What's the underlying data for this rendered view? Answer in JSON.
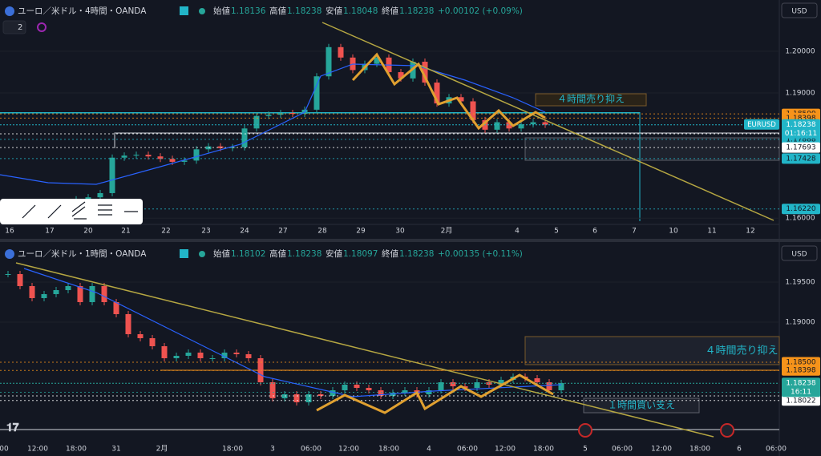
{
  "top_chart": {
    "type": "candlestick",
    "title": "ユーロ／米ドル・4時間・OANDA",
    "interval_badge": "2",
    "currency": "USD",
    "ohlc": {
      "open_label": "始値",
      "open": "1.18136",
      "high_label": "高値",
      "high": "1.18238",
      "low_label": "安値",
      "low": "1.18048",
      "close_label": "終値",
      "close": "1.18238",
      "change": "+0.00102 (+0.09%)"
    },
    "ylim": [
      1.1585,
      1.2123
    ],
    "yticks": [
      {
        "value": 1.16,
        "label": "1.16000"
      },
      {
        "value": 1.19,
        "label": "1.19000"
      },
      {
        "value": 1.2,
        "label": "1.20000"
      }
    ],
    "closes": [
      1.1622,
      1.1624,
      1.1625,
      1.162,
      1.1628,
      1.1632,
      1.1645,
      1.165,
      1.166,
      1.1745,
      1.175,
      1.1752,
      1.1748,
      1.1742,
      1.1735,
      1.1738,
      1.1765,
      1.1772,
      1.1768,
      1.177,
      1.1815,
      1.1845,
      1.1848,
      1.1852,
      1.185,
      1.186,
      1.194,
      1.201,
      1.1985,
      1.1955,
      1.197,
      1.1985,
      1.195,
      1.1935,
      1.1975,
      1.1925,
      1.1875,
      1.189,
      1.188,
      1.1835,
      1.1812,
      1.183,
      1.1815,
      1.1825,
      1.183,
      1.1824
    ],
    "price_labels": [
      {
        "value": 1.185,
        "label": "1.18500",
        "color": "#f7931a"
      },
      {
        "value": 1.18398,
        "label": "1.18398",
        "color": "#f7931a"
      },
      {
        "value": 1.18022,
        "label": "1.18022",
        "color": "#ffffff"
      },
      {
        "value": 1.17888,
        "label": "1.17888",
        "color": "#22b5c8"
      },
      {
        "value": 1.17693,
        "label": "1.17693",
        "color": "#ffffff"
      },
      {
        "value": 1.17428,
        "label": "1.17428",
        "color": "#22b5c8"
      },
      {
        "value": 1.1622,
        "label": "1.16220",
        "color": "#22b5c8"
      }
    ],
    "last": {
      "symbol": "EURUSD",
      "value": 1.18238,
      "label": "1.18238",
      "countdown": "01:16:11",
      "color": "#22b5c8"
    },
    "xlabels": [
      "16",
      "17",
      "20",
      "21",
      "22",
      "23",
      "24",
      "27",
      "28",
      "29",
      "30",
      "2月",
      "4",
      "5",
      "6",
      "7",
      "10",
      "11",
      "12"
    ],
    "annotation": "４時間売り抑え"
  },
  "bottom_chart": {
    "type": "candlestick",
    "title": "ユーロ／米ドル・1時間・OANDA",
    "currency": "USD",
    "ohlc": {
      "open_label": "始値",
      "open": "1.18102",
      "high_label": "高値",
      "high": "1.18238",
      "low_label": "安値",
      "low": "1.18097",
      "close_label": "終値",
      "close": "1.18238",
      "change": "+0.00135 (+0.11%)"
    },
    "ylim": [
      1.1757,
      1.1977
    ],
    "yticks": [
      {
        "value": 1.19,
        "label": "1.19000"
      },
      {
        "value": 1.195,
        "label": "1.19500"
      }
    ],
    "closes": [
      1.196,
      1.1945,
      1.193,
      1.1935,
      1.194,
      1.1945,
      1.1925,
      1.1945,
      1.1925,
      1.191,
      1.1885,
      1.188,
      1.187,
      1.1855,
      1.1858,
      1.1862,
      1.1855,
      1.1855,
      1.1862,
      1.186,
      1.1855,
      1.1825,
      1.1805,
      1.181,
      1.18,
      1.181,
      1.1808,
      1.1815,
      1.1822,
      1.1818,
      1.1815,
      1.1808,
      1.1812,
      1.1815,
      1.181,
      1.1815,
      1.1825,
      1.182,
      1.1818,
      1.1825,
      1.1822,
      1.1828,
      1.1832,
      1.183,
      1.1825,
      1.1815,
      1.1824
    ],
    "price_labels": [
      {
        "value": 1.185,
        "label": "1.18500",
        "color": "#f7931a"
      },
      {
        "value": 1.18398,
        "label": "1.18398",
        "color": "#f7931a"
      },
      {
        "value": 1.18125,
        "label": "1.18125",
        "color": "#26a69a"
      },
      {
        "value": 1.1808,
        "label": "1.18080",
        "color": "#ffffff"
      },
      {
        "value": 1.18022,
        "label": "1.18022",
        "color": "#ffffff"
      }
    ],
    "last": {
      "value": 1.18238,
      "label": "1.18238",
      "countdown": "16:11",
      "color": "#26a69a"
    },
    "xlabels": [
      "00",
      "12:00",
      "18:00",
      "31",
      "2月",
      "18:00",
      "3",
      "06:00",
      "12:00",
      "18:00",
      "4",
      "06:00",
      "12:00",
      "18:00",
      "5",
      "06:00",
      "12:00",
      "18:00",
      "6",
      "06:00"
    ],
    "annotations": [
      "４時間売り抑え",
      "１時間買い支え"
    ]
  }
}
